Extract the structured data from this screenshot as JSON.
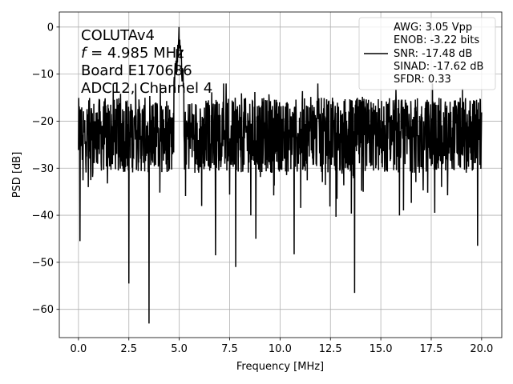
{
  "chart_data": {
    "type": "line",
    "xlabel": "Frequency [MHz]",
    "ylabel": "PSD [dB]",
    "xlim": [
      -0.95,
      21.0
    ],
    "ylim": [
      -66.0,
      3.2
    ],
    "x_ticks": [
      0.0,
      2.5,
      5.0,
      7.5,
      10.0,
      12.5,
      15.0,
      17.5,
      20.0
    ],
    "x_tick_labels": [
      "0.0",
      "2.5",
      "5.0",
      "7.5",
      "10.0",
      "12.5",
      "15.0",
      "17.5",
      "20.0"
    ],
    "y_ticks": [
      0,
      -10,
      -20,
      -30,
      -40,
      -50,
      -60
    ],
    "y_tick_labels": [
      "0",
      "−10",
      "−20",
      "−30",
      "−40",
      "−50",
      "−60"
    ],
    "grid": true,
    "line_color": "#000000",
    "annotation_lines": [
      "COLUTAv4",
      "f = 4.985 MHz",
      "Board E170686",
      "ADC12, Channel 4"
    ],
    "legend_placement": "top-right",
    "legend_lines": [
      "AWG: 3.05 Vpp",
      "ENOB: -3.22 bits",
      "SNR: -17.48 dB",
      "SINAD: -17.62 dB",
      "SFDR: 0.33"
    ],
    "series": [
      {
        "noise_floor_db": -23,
        "noise_range_db": [
          -35,
          -12
        ],
        "peak": {
          "x": 4.985,
          "y": 0.0
        },
        "spikes": [
          {
            "x": 0.08,
            "y": -45.5
          },
          {
            "x": 2.5,
            "y": -54.5
          },
          {
            "x": 3.5,
            "y": -63.0
          },
          {
            "x": 6.8,
            "y": -48.5
          },
          {
            "x": 7.8,
            "y": -51.0
          },
          {
            "x": 8.8,
            "y": -45.0
          },
          {
            "x": 10.7,
            "y": -48.3
          },
          {
            "x": 13.7,
            "y": -56.5
          },
          {
            "x": 19.8,
            "y": -46.5
          }
        ]
      }
    ]
  }
}
